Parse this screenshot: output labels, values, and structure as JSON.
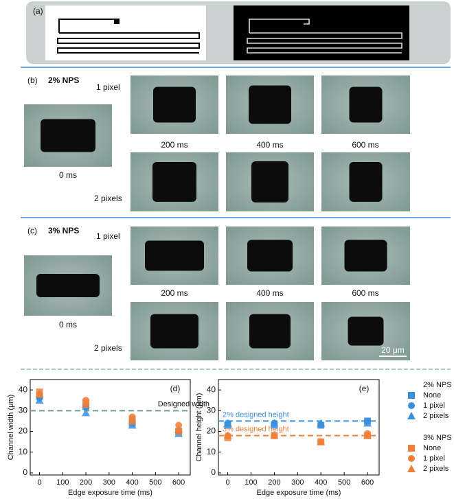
{
  "panel_a": {
    "label": "(a)"
  },
  "panel_b": {
    "label": "(b)",
    "title": "2% NPS",
    "row1": "1 pixel",
    "row2": "2 pixels",
    "zero": "0 ms",
    "times": [
      "200 ms",
      "400 ms",
      "600 ms"
    ]
  },
  "panel_c": {
    "label": "(c)",
    "title": "3% NPS",
    "row1": "1 pixel",
    "row2": "2 pixels",
    "zero": "0 ms",
    "times": [
      "200 ms",
      "400 ms",
      "600 ms"
    ],
    "scale_bar": "20 μm"
  },
  "chart_data": [
    {
      "type": "scatter",
      "panel_label": "(d)",
      "xlabel": "Edge exposure time (ms)",
      "ylabel": "Channel width (μm)",
      "xlim": [
        -40,
        650
      ],
      "xticks": [
        0,
        100,
        200,
        300,
        400,
        500,
        600
      ],
      "ylim": [
        -1,
        45
      ],
      "yticks": [
        0,
        10,
        20,
        30,
        40
      ],
      "x": [
        0,
        200,
        400,
        600
      ],
      "ref_lines": [
        {
          "value": 30,
          "color": "#6f9c8e",
          "label": "Designed width"
        }
      ],
      "series_groups": [
        {
          "color": "#3a8fdc",
          "series": [
            {
              "marker": "square",
              "values": [
                37,
                32,
                24,
                20
              ]
            },
            {
              "marker": "circle",
              "values": [
                36,
                32,
                25,
                20
              ]
            },
            {
              "marker": "triangle",
              "values": [
                35,
                29,
                23,
                19
              ]
            }
          ]
        },
        {
          "color": "#f07f3a",
          "series": [
            {
              "marker": "square",
              "values": [
                39,
                34,
                26,
                20
              ]
            },
            {
              "marker": "circle",
              "values": [
                38,
                35,
                27,
                23
              ]
            },
            {
              "marker": "triangle",
              "values": [
                38,
                33,
                25,
                21
              ]
            }
          ]
        }
      ]
    },
    {
      "type": "scatter",
      "panel_label": "(e)",
      "xlabel": "Edge exposure time (ms)",
      "ylabel": "Channel height (μm)",
      "xlim": [
        -40,
        650
      ],
      "xticks": [
        0,
        100,
        200,
        300,
        400,
        500,
        600
      ],
      "ylim": [
        -1,
        45
      ],
      "yticks": [
        0,
        10,
        20,
        30,
        40
      ],
      "x": [
        0,
        200,
        400,
        600
      ],
      "ref_lines": [
        {
          "value": 25,
          "color": "#3a8fdc",
          "label": "2% designed height"
        },
        {
          "value": 18,
          "color": "#f07f3a",
          "label": "3% designed height"
        }
      ],
      "series_groups": [
        {
          "name": "2% NPS",
          "color": "#3a8fdc",
          "series": [
            {
              "name": "None",
              "marker": "square",
              "values": [
                23,
                23,
                23,
                25
              ]
            },
            {
              "name": "1 pixel",
              "marker": "circle",
              "values": [
                24,
                24,
                23,
                25
              ]
            },
            {
              "name": "2 pixels",
              "marker": "triangle",
              "values": [
                24,
                24,
                24,
                24
              ]
            }
          ]
        },
        {
          "name": "3% NPS",
          "color": "#f07f3a",
          "series": [
            {
              "name": "None",
              "marker": "square",
              "values": [
                17,
                18,
                15,
                18
              ]
            },
            {
              "name": "1 pixel",
              "marker": "circle",
              "values": [
                18,
                18,
                15,
                19
              ]
            },
            {
              "name": "2 pixels",
              "marker": "triangle",
              "values": [
                18,
                18,
                15,
                18
              ]
            }
          ]
        }
      ]
    }
  ]
}
